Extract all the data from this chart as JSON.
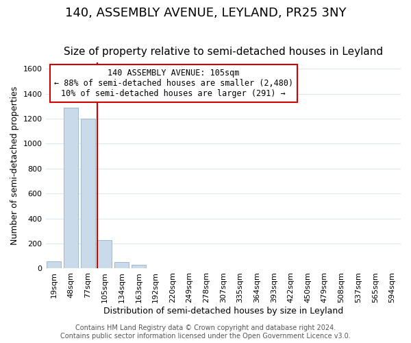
{
  "title": "140, ASSEMBLY AVENUE, LEYLAND, PR25 3NY",
  "subtitle": "Size of property relative to semi-detached houses in Leyland",
  "xlabel": "Distribution of semi-detached houses by size in Leyland",
  "ylabel": "Number of semi-detached properties",
  "bar_values": [
    60,
    1290,
    1200,
    230,
    50,
    30,
    0,
    0,
    0,
    0,
    0,
    0,
    0,
    0,
    0,
    0,
    0,
    0,
    0,
    0,
    0
  ],
  "bar_labels": [
    "19sqm",
    "48sqm",
    "77sqm",
    "105sqm",
    "134sqm",
    "163sqm",
    "192sqm",
    "220sqm",
    "249sqm",
    "278sqm",
    "307sqm",
    "335sqm",
    "364sqm",
    "393sqm",
    "422sqm",
    "450sqm",
    "479sqm",
    "508sqm",
    "537sqm",
    "565sqm",
    "594sqm"
  ],
  "bar_color": "#c9daea",
  "bar_edge_color": "#a0b8cc",
  "vline_color": "#cc0000",
  "ylim": [
    0,
    1650
  ],
  "yticks": [
    0,
    200,
    400,
    600,
    800,
    1000,
    1200,
    1400,
    1600
  ],
  "annotation_title": "140 ASSEMBLY AVENUE: 105sqm",
  "annotation_line1": "← 88% of semi-detached houses are smaller (2,480)",
  "annotation_line2": "10% of semi-detached houses are larger (291) →",
  "annotation_box_color": "#ffffff",
  "annotation_box_edge_color": "#cc0000",
  "footer_line1": "Contains HM Land Registry data © Crown copyright and database right 2024.",
  "footer_line2": "Contains public sector information licensed under the Open Government Licence v3.0.",
  "background_color": "#ffffff",
  "grid_color": "#dde8f0",
  "title_fontsize": 13,
  "subtitle_fontsize": 11,
  "axis_label_fontsize": 9,
  "tick_fontsize": 8,
  "footer_fontsize": 7
}
